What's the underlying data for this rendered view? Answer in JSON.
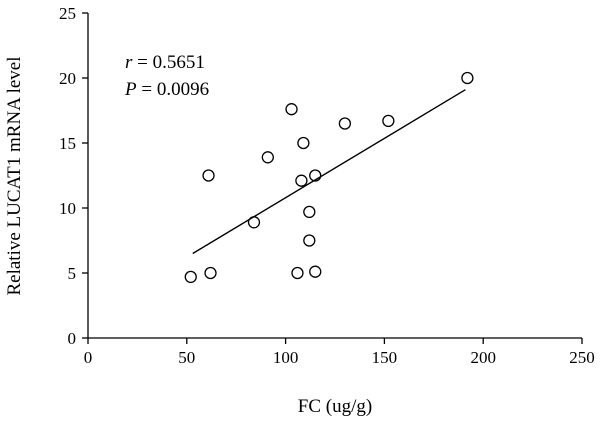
{
  "chart_data": {
    "type": "scatter",
    "xlabel": "FC (ug/g)",
    "ylabel": "Relative LUCAT1 mRNA level",
    "xlim": [
      0,
      250
    ],
    "ylim": [
      0,
      25
    ],
    "x_ticks": [
      0,
      50,
      100,
      150,
      200,
      250
    ],
    "y_ticks": [
      0,
      5,
      10,
      15,
      20,
      25
    ],
    "grid": false,
    "points": [
      {
        "x": 52,
        "y": 4.7
      },
      {
        "x": 61,
        "y": 12.5
      },
      {
        "x": 62,
        "y": 5.0
      },
      {
        "x": 84,
        "y": 8.9
      },
      {
        "x": 91,
        "y": 13.9
      },
      {
        "x": 103,
        "y": 17.6
      },
      {
        "x": 106,
        "y": 5.0
      },
      {
        "x": 108,
        "y": 12.1
      },
      {
        "x": 109,
        "y": 15.0
      },
      {
        "x": 112,
        "y": 9.7
      },
      {
        "x": 112,
        "y": 7.5
      },
      {
        "x": 115,
        "y": 12.5
      },
      {
        "x": 115,
        "y": 5.1
      },
      {
        "x": 130,
        "y": 16.5
      },
      {
        "x": 152,
        "y": 16.7
      },
      {
        "x": 192,
        "y": 20.0
      }
    ],
    "regression_line": {
      "x1": 53,
      "y1": 6.5,
      "x2": 191,
      "y2": 19.1
    },
    "annotations": {
      "r_symbol": "r",
      "r_value": " = 0.5651",
      "p_symbol": "P",
      "p_value": " = 0.0096"
    }
  }
}
